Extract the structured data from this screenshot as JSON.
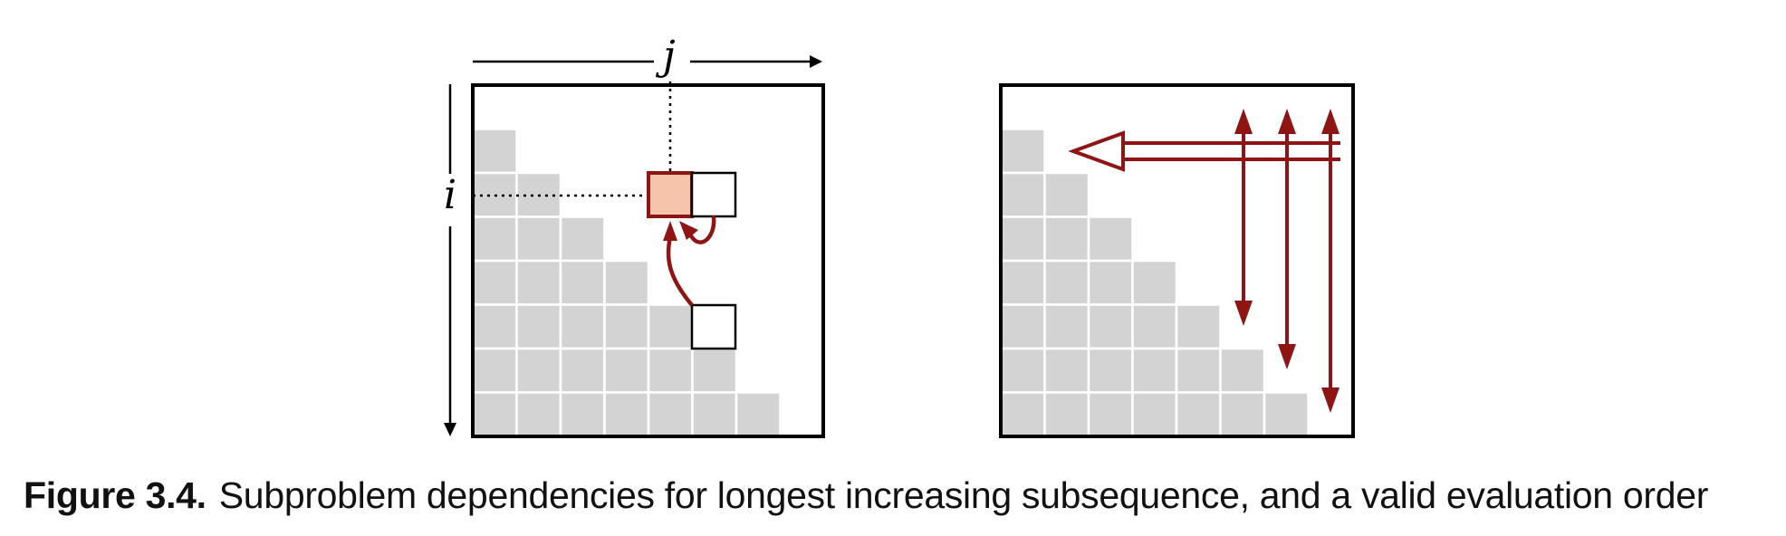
{
  "diagram": {
    "axis_j_label": "j",
    "axis_i_label": "i",
    "grid_rows": 7,
    "colors": {
      "cell_fill": "#d3d3d3",
      "highlight_fill": "#f6c4aa",
      "arrow": "#8f1414",
      "frame": "#000000"
    },
    "left_panel": "Subproblem dependencies",
    "right_panel": "Evaluation order"
  },
  "caption": {
    "label": "Figure 3.4.",
    "text": "Subproblem dependencies for longest increasing subsequence, and a valid evaluation order"
  }
}
